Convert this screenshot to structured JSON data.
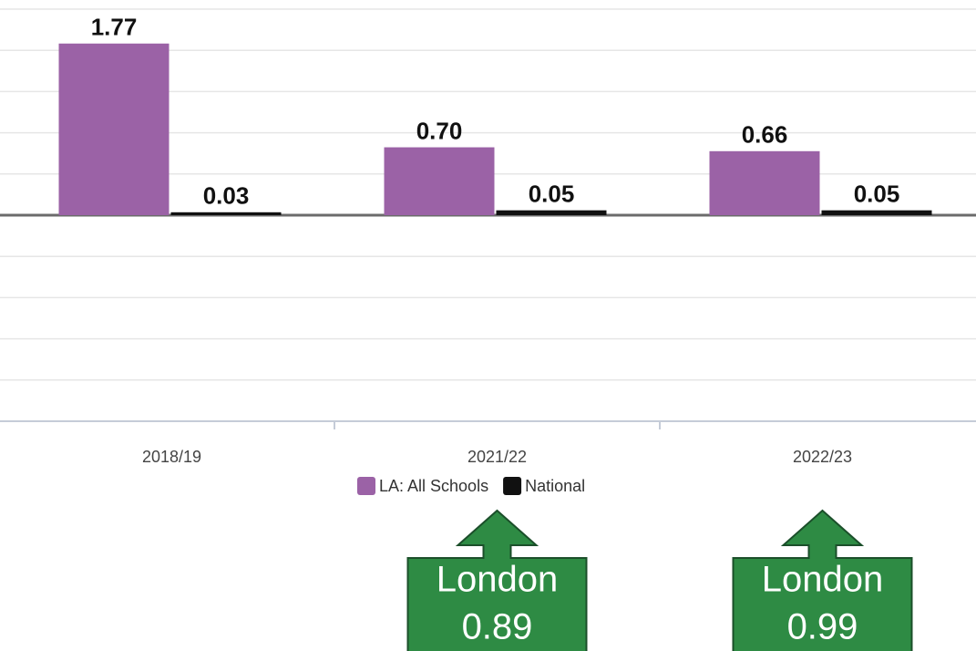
{
  "chart_data": {
    "type": "bar",
    "categories": [
      "2018/19",
      "2021/22",
      "2022/23"
    ],
    "series": [
      {
        "name": "LA: All Schools",
        "color": "#9b62a6",
        "values": [
          1.77,
          0.7,
          0.66
        ],
        "value_labels": [
          "1.77",
          "0.70",
          "0.66"
        ]
      },
      {
        "name": "National",
        "color": "#111111",
        "values": [
          0.03,
          0.05,
          0.05
        ],
        "value_labels": [
          "0.03",
          "0.05",
          "0.05"
        ]
      }
    ],
    "ylim": [
      -2.125,
      2.125
    ],
    "yticks": [
      -2.125,
      -1.7,
      -1.275,
      -0.85,
      -0.425,
      0,
      0.425,
      0.85,
      1.275,
      1.7,
      2.125
    ],
    "grid": true,
    "legend": "bottom",
    "annotations": [
      {
        "category": "2021/22",
        "label": "London",
        "value": 0.89
      },
      {
        "category": "2022/23",
        "label": "London",
        "value": 0.99
      }
    ]
  }
}
